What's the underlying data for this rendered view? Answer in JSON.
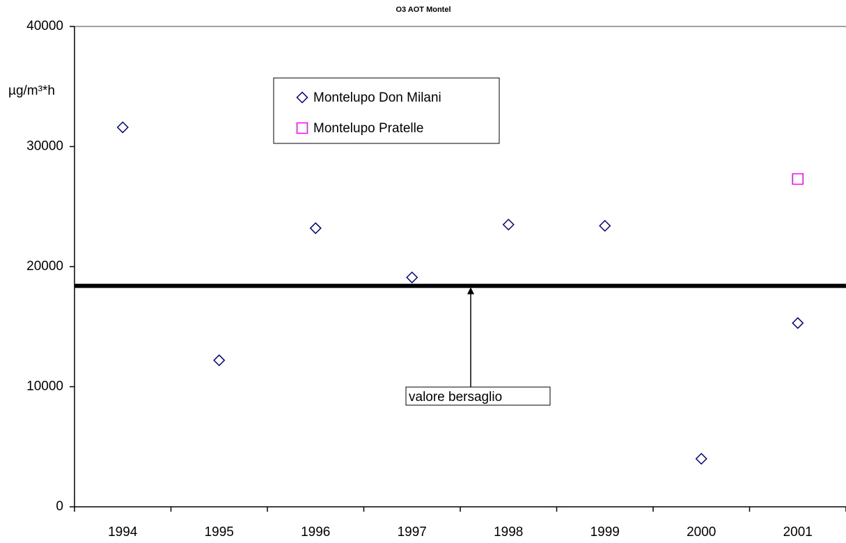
{
  "chart_data": {
    "type": "scatter",
    "title": "O3 AOT Montel",
    "y_label": "µg/m³*h",
    "categories": [
      "1994",
      "1995",
      "1996",
      "1997",
      "1998",
      "1999",
      "2000",
      "2001"
    ],
    "series": [
      {
        "name": "Montelupo Don Milani",
        "color": "#000080",
        "marker": "diamond",
        "values": [
          31600,
          12200,
          23200,
          19100,
          23500,
          23400,
          4000,
          15300
        ]
      },
      {
        "name": "Montelupo Pratelle",
        "color": "#ff00ff",
        "marker": "square",
        "values": [
          null,
          null,
          null,
          null,
          null,
          null,
          null,
          27300
        ]
      }
    ],
    "reference_line": 18400,
    "annotation": "valore bersaglio",
    "ylim": [
      0,
      40000
    ],
    "yticks": [
      0,
      10000,
      20000,
      30000,
      40000
    ],
    "grid": false
  }
}
